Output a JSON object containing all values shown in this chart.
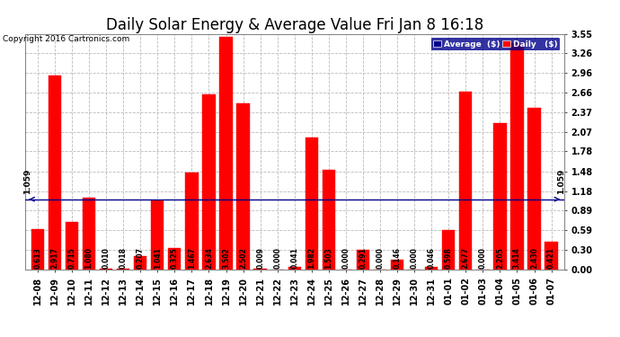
{
  "title": "Daily Solar Energy & Average Value Fri Jan 8 16:18",
  "copyright": "Copyright 2016 Cartronics.com",
  "categories": [
    "12-08",
    "12-09",
    "12-10",
    "12-11",
    "12-12",
    "12-13",
    "12-14",
    "12-15",
    "12-16",
    "12-17",
    "12-18",
    "12-19",
    "12-20",
    "12-21",
    "12-22",
    "12-23",
    "12-24",
    "12-25",
    "12-26",
    "12-27",
    "12-28",
    "12-29",
    "12-30",
    "12-31",
    "01-01",
    "01-02",
    "01-03",
    "01-04",
    "01-05",
    "01-06",
    "01-07"
  ],
  "values": [
    0.613,
    2.917,
    0.715,
    1.08,
    0.01,
    0.018,
    0.207,
    1.041,
    0.325,
    1.467,
    2.634,
    3.502,
    2.502,
    0.009,
    0.0,
    0.041,
    1.982,
    1.503,
    0.0,
    0.291,
    0.0,
    0.146,
    0.0,
    0.046,
    0.598,
    2.677,
    0.0,
    2.205,
    3.414,
    2.43,
    0.421
  ],
  "average_line": 1.059,
  "bar_color": "#ff0000",
  "avg_line_color": "#00008b",
  "background_color": "#ffffff",
  "grid_color": "#bbbbbb",
  "ylim": [
    0.0,
    3.55
  ],
  "yticks": [
    0.0,
    0.3,
    0.59,
    0.89,
    1.18,
    1.48,
    1.78,
    2.07,
    2.37,
    2.66,
    2.96,
    3.26,
    3.55
  ],
  "title_fontsize": 12,
  "tick_fontsize": 7,
  "bar_label_fontsize": 5.5,
  "avg_label": "1.059",
  "legend_avg_color": "#00008b",
  "legend_daily_color": "#ff0000"
}
